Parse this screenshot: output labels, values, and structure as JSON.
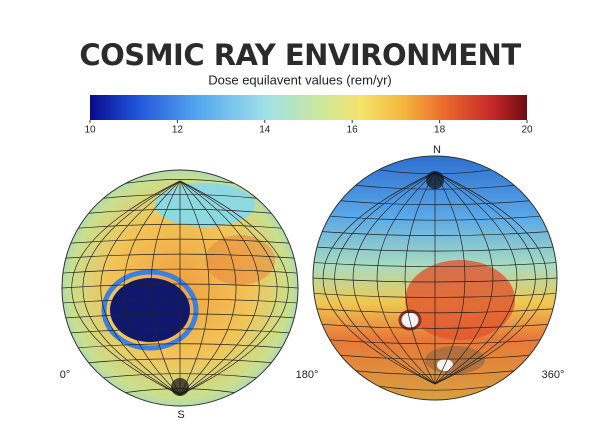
{
  "title": "COSMIC RAY ENVIRONMENT",
  "colorbar": {
    "label": "Dose equilavent values (rem/yr)",
    "lim": [
      10,
      20
    ],
    "ticks": [
      10,
      12,
      14,
      16,
      18,
      20
    ]
  },
  "globes": {
    "left_longitude": "0°",
    "middle_longitude": "180°",
    "right_longitude": "360°",
    "north": "N",
    "south": "S"
  }
}
